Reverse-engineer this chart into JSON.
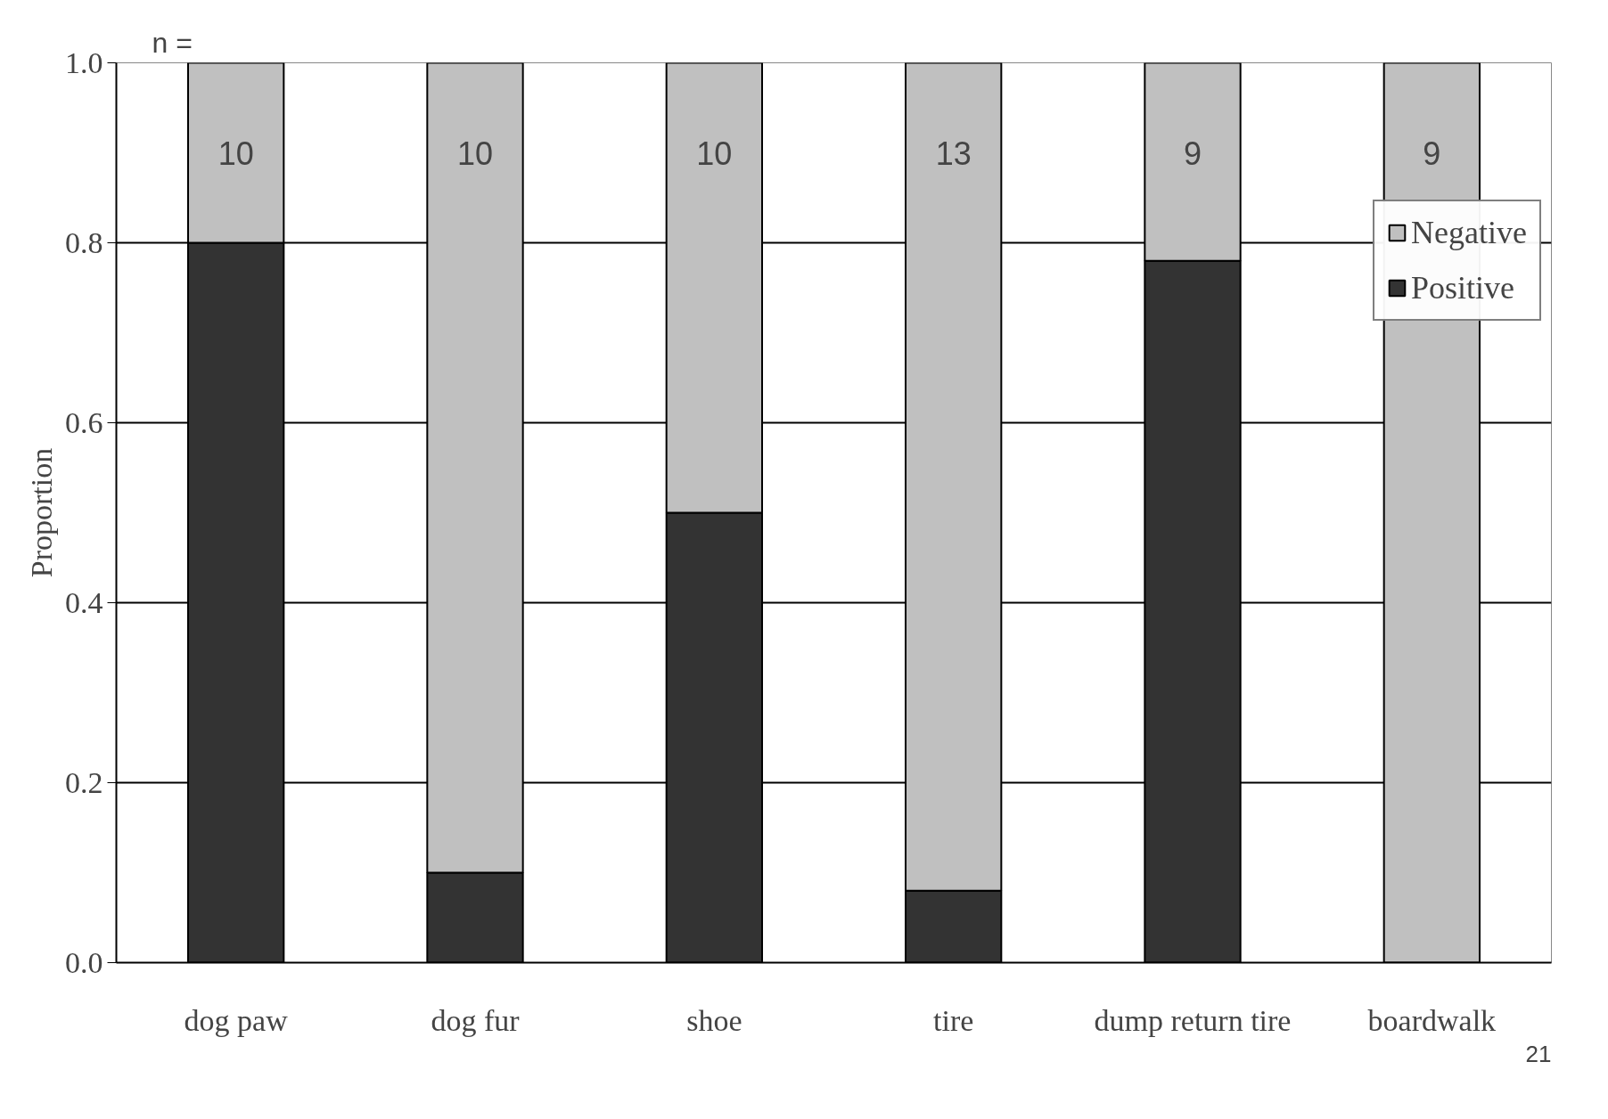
{
  "chart_data": {
    "type": "bar",
    "ylabel": "Proportion",
    "categories": [
      "dog paw",
      "dog fur",
      "shoe",
      "tire",
      "dump return tire",
      "boardwalk"
    ],
    "stacked": true,
    "series": [
      {
        "name": "Positive",
        "color": "#333333",
        "values": [
          0.8,
          0.1,
          0.5,
          0.08,
          0.78,
          0.0
        ]
      },
      {
        "name": "Negative",
        "color": "#c0c0c0",
        "values": [
          0.2,
          0.9,
          0.5,
          0.92,
          0.22,
          1.0
        ]
      }
    ],
    "ylim": [
      0,
      1
    ],
    "yticks": [
      {
        "value": 0,
        "label": "0.0"
      },
      {
        "value": 0.2,
        "label": "0.2"
      },
      {
        "value": 0.4,
        "label": "0.4"
      },
      {
        "value": 0.6,
        "label": "0.6"
      },
      {
        "value": 0.8,
        "label": "0.8"
      },
      {
        "value": 1,
        "label": "1.0"
      }
    ],
    "grid": "y",
    "legend": "top right",
    "annotations": [
      "n =",
      "10",
      "10",
      "10",
      "13",
      "9",
      "9",
      "21"
    ]
  }
}
